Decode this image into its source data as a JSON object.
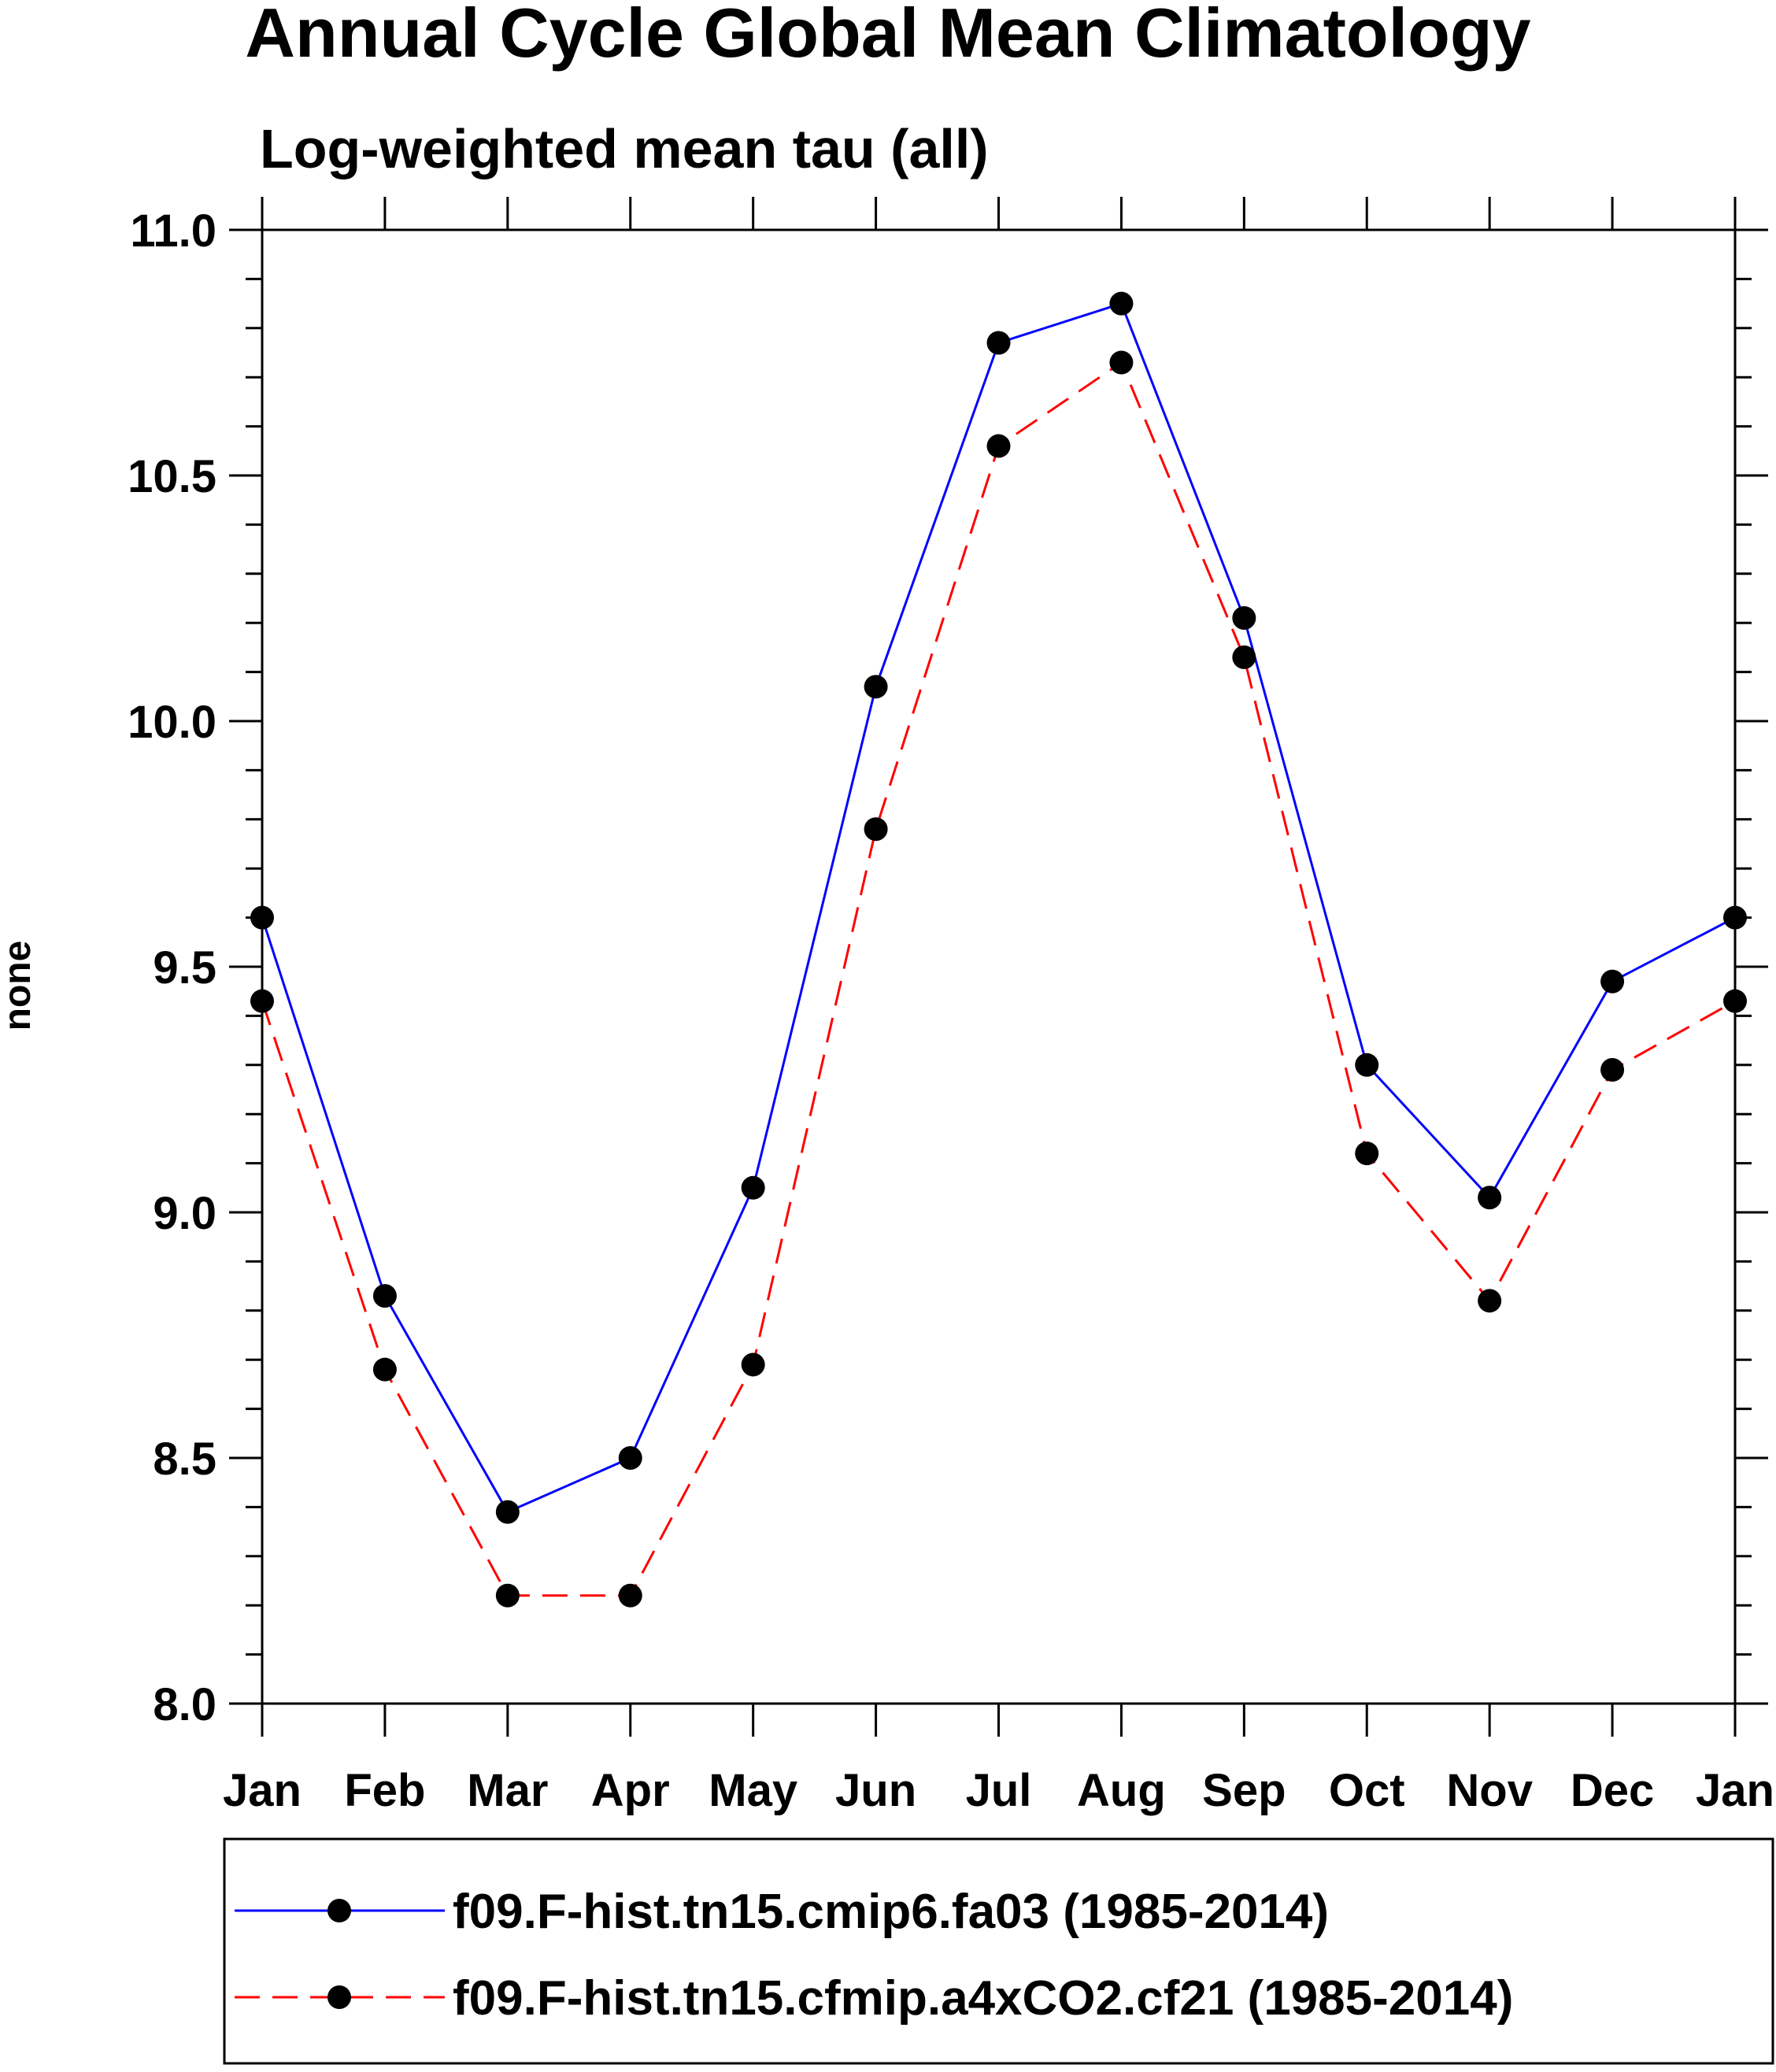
{
  "chart_data": {
    "type": "line",
    "title": "Annual Cycle Global Mean Climatology",
    "subtitle": "Log-weighted mean tau (all)",
    "xlabel": "",
    "ylabel": "none",
    "categories": [
      "Jan",
      "Feb",
      "Mar",
      "Apr",
      "May",
      "Jun",
      "Jul",
      "Aug",
      "Sep",
      "Oct",
      "Nov",
      "Dec",
      "Jan"
    ],
    "ylim": [
      8.0,
      11.0
    ],
    "yticks": [
      "8.0",
      "8.5",
      "9.0",
      "9.5",
      "10.0",
      "10.5",
      "11.0"
    ],
    "series": [
      {
        "name": "f09.F-hist.tn15.cmip6.fa03 (1985-2014)",
        "color": "#0000ff",
        "dash": "solid",
        "values": [
          9.6,
          8.83,
          8.39,
          8.5,
          9.05,
          10.07,
          10.77,
          10.85,
          10.21,
          9.3,
          9.03,
          9.47,
          9.6
        ]
      },
      {
        "name": "f09.F-hist.tn15.cfmip.a4xCO2.cf21 (1985-2014)",
        "color": "#ff0000",
        "dash": "dashed",
        "values": [
          9.43,
          8.68,
          8.22,
          8.22,
          8.69,
          9.78,
          10.56,
          10.73,
          10.13,
          9.12,
          8.82,
          9.29,
          9.43
        ]
      }
    ],
    "legend": "bottom"
  }
}
